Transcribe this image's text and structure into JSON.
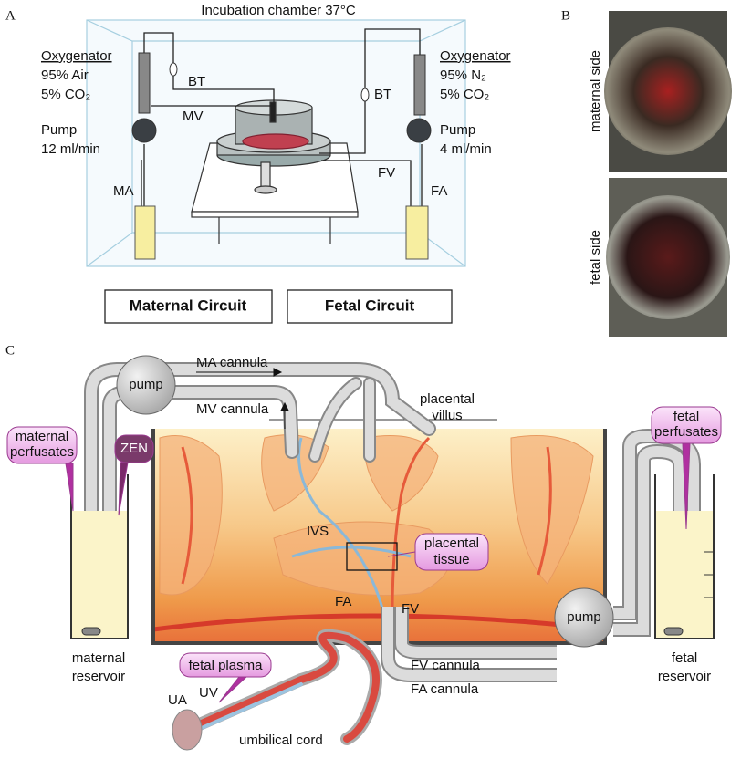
{
  "panel_a": {
    "letter": "A",
    "title": "Incubation chamber 37°C",
    "maternal": {
      "oxygenator": "Oxygenator",
      "gas": [
        "95% Air",
        "5% CO₂"
      ],
      "pump": "Pump",
      "rate": "12 ml/min",
      "bt": "BT",
      "mv": "MV",
      "ma": "MA",
      "circuit": "Maternal Circuit"
    },
    "fetal": {
      "oxygenator": "Oxygenator",
      "gas": [
        "95% N₂",
        "5% CO₂"
      ],
      "pump": "Pump",
      "rate": "4 ml/min",
      "bt": "BT",
      "fv": "FV",
      "fa": "FA",
      "circuit": "Fetal Circuit"
    }
  },
  "panel_b": {
    "letter": "B",
    "photos": [
      "maternal side",
      "fetal side"
    ]
  },
  "panel_c": {
    "letter": "C",
    "maternal_pump": "pump",
    "ma_cannula": "MA cannula",
    "mv_cannula": "MV cannula",
    "villus": [
      "placental",
      "villus"
    ],
    "maternal_perfusates": [
      "maternal",
      "perfusates"
    ],
    "zen": "ZEN",
    "fetal_perfusates": [
      "fetal",
      "perfusates"
    ],
    "ivs": "IVS",
    "placental_tissue": [
      "placental",
      "tissue"
    ],
    "fa": "FA",
    "fv": "FV",
    "maternal_reservoir": [
      "maternal",
      "reservoir"
    ],
    "fetal_reservoir": [
      "fetal",
      "reservoir"
    ],
    "fetal_plasma": "fetal plasma",
    "uv": "UV",
    "ua": "UA",
    "umbilical_cord": "umbilical cord",
    "fv_cannula": "FV cannula",
    "fa_cannula": "FA cannula",
    "fetal_pump": "pump"
  }
}
